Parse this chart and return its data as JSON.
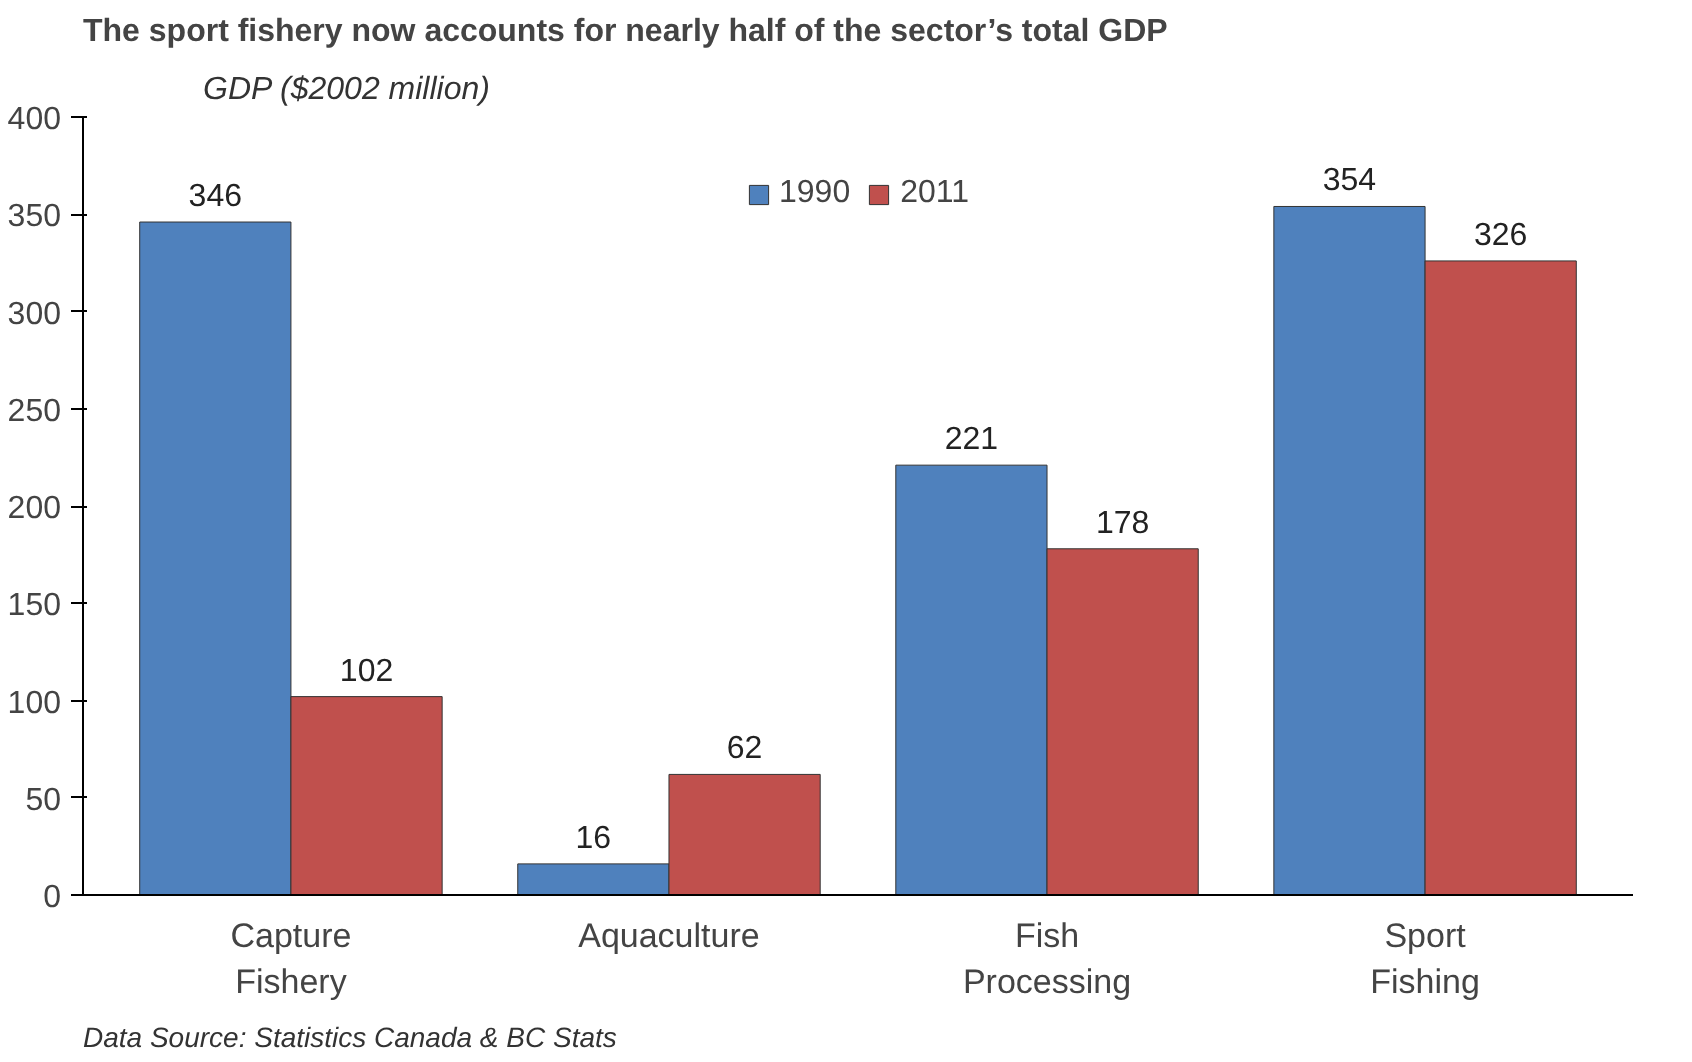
{
  "chart_data": {
    "type": "bar",
    "title": "The sport fishery now accounts for nearly half of the sector’s total GDP",
    "ylabel": "GDP ($2002 million)",
    "categories": [
      "Capture\nFishery",
      "Aquaculture",
      "Fish\nProcessing",
      "Sport\nFishing"
    ],
    "series": [
      {
        "name": "1990",
        "color": "#4f81bd",
        "values": [
          346,
          16,
          221,
          354
        ]
      },
      {
        "name": "2011",
        "color": "#c0504d",
        "values": [
          102,
          62,
          178,
          326
        ]
      }
    ],
    "ylim": [
      0,
      400
    ],
    "yticks": [
      0,
      50,
      100,
      150,
      200,
      250,
      300,
      350,
      400
    ],
    "grid": false,
    "legend": "top",
    "data_labels": true,
    "annotations": [
      "Data Source: Statistics Canada & BC Stats"
    ]
  }
}
